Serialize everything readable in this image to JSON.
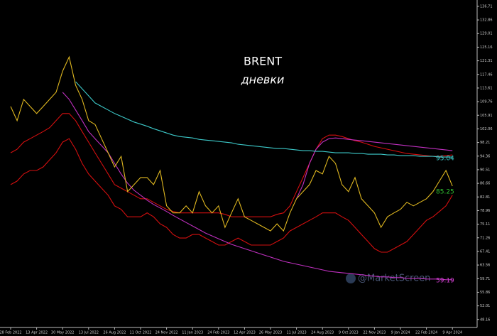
{
  "chart_data": {
    "type": "line",
    "title": "BRENT",
    "subtitle": "дневки",
    "watermark": "@MarketScreen",
    "annotations": [
      {
        "text": "95.04",
        "color": "#40d0d0"
      },
      {
        "text": "85.25",
        "color": "#30c030"
      },
      {
        "text": "59.19",
        "color": "#d040d0"
      }
    ],
    "categories": [
      "28 Feb 2022",
      null,
      null,
      null,
      "13 Apr 2022",
      null,
      null,
      null,
      "30 May 2022",
      null,
      null,
      null,
      "13 Jul 2022",
      null,
      null,
      null,
      "26 Aug 2022",
      null,
      null,
      null,
      "11 Oct 2022",
      null,
      null,
      null,
      "24 Nov 2022",
      null,
      null,
      null,
      "11 Jan 2023",
      null,
      null,
      null,
      "24 Feb 2023",
      null,
      null,
      null,
      "12 Apr 2023",
      null,
      null,
      null,
      "26 May 2023",
      null,
      null,
      null,
      "11 Jul 2023",
      null,
      null,
      null,
      "24 Aug 2023",
      null,
      null,
      null,
      "9 Oct 2023",
      null,
      null,
      null,
      "22 Nov 2023",
      null,
      null,
      null,
      "9 Jan 2024",
      null,
      null,
      null,
      "22 Feb 2024",
      null,
      null,
      null,
      "9 Apr 2024"
    ],
    "series": [
      {
        "color": "#d40f0f",
        "values": [
          95.3,
          96.3,
          98.3,
          99.3,
          100.3,
          101.3,
          102.4,
          104.4,
          106.4,
          106.4,
          104.4,
          101.3,
          98.3,
          95.3,
          92.3,
          89.3,
          86.3,
          85.3,
          84.3,
          83.3,
          82.3,
          82.3,
          81.3,
          80.3,
          79.3,
          78.7,
          78.3,
          78.3,
          78.3,
          78.3,
          78.3,
          78.3,
          78.3,
          77.9,
          77.2,
          77.2,
          77.2,
          77.2,
          77.2,
          77.2,
          77.2,
          77.9,
          78.3,
          80.3,
          84.3,
          88.3,
          92.3,
          96.3,
          99.3,
          100.3,
          100.3,
          99.9,
          99.3,
          98.7,
          98.3,
          97.7,
          97.1,
          96.7,
          96.3,
          95.9,
          95.5,
          95.1,
          94.9,
          94.7,
          94.5,
          94.3,
          94.3,
          94.5,
          94.7
        ]
      },
      {
        "color": "#d40f0f",
        "values": [
          86.3,
          87.3,
          89.3,
          90.3,
          90.3,
          91.3,
          93.3,
          95.3,
          98.3,
          99.3,
          96.3,
          92.3,
          89.3,
          87.3,
          85.3,
          83.3,
          80.3,
          79.3,
          77.2,
          77.2,
          77.2,
          78.3,
          77.2,
          75.2,
          74.2,
          72.2,
          71.2,
          71.2,
          72.2,
          72.2,
          71.2,
          70.2,
          69.2,
          69.2,
          70.2,
          71.2,
          70.2,
          69.2,
          69.2,
          69.2,
          69.2,
          70.2,
          71.2,
          73.2,
          74.2,
          75.2,
          76.2,
          77.2,
          78.3,
          78.3,
          78.3,
          77.2,
          76.2,
          74.2,
          72.2,
          70.2,
          68.2,
          67.2,
          67.2,
          68.2,
          69.2,
          70.2,
          72.2,
          74.2,
          76.2,
          77.2,
          78.7,
          80.3,
          83.3
        ]
      },
      {
        "color": "#c030c0",
        "values": [
          null,
          null,
          null,
          null,
          null,
          null,
          null,
          null,
          112.4,
          110.4,
          107.4,
          104.4,
          101.3,
          99.3,
          97.3,
          95.3,
          92.3,
          89.3,
          86.7,
          84.7,
          83.3,
          81.9,
          80.7,
          79.7,
          78.7,
          77.6,
          76.6,
          75.6,
          74.6,
          73.6,
          72.6,
          71.8,
          71.0,
          70.2,
          69.4,
          68.8,
          68.2,
          67.6,
          67.0,
          66.4,
          65.8,
          65.2,
          64.6,
          64.2,
          63.8,
          63.4,
          63.0,
          62.6,
          62.2,
          61.8,
          61.6,
          61.4,
          61.2,
          61.0,
          60.8,
          60.6,
          60.4,
          60.2,
          60.2,
          60.0,
          60.0,
          59.8,
          59.8,
          59.8,
          59.6,
          59.6,
          59.6,
          59.4,
          59.4
        ]
      },
      {
        "color": "#c030c0",
        "values": [
          null,
          null,
          null,
          null,
          null,
          null,
          null,
          null,
          null,
          null,
          null,
          null,
          null,
          null,
          null,
          null,
          null,
          null,
          null,
          null,
          null,
          null,
          null,
          null,
          null,
          null,
          null,
          null,
          null,
          null,
          null,
          null,
          null,
          null,
          null,
          null,
          null,
          null,
          null,
          null,
          null,
          null,
          null,
          null,
          82.3,
          86.3,
          92.3,
          96.3,
          98.3,
          99.3,
          99.5,
          99.3,
          99.1,
          98.9,
          98.7,
          98.5,
          98.3,
          98.1,
          97.9,
          97.7,
          97.5,
          97.3,
          97.1,
          96.9,
          96.7,
          96.5,
          96.3,
          96.1,
          95.9
        ]
      },
      {
        "color": "#3cc8c8",
        "values": [
          null,
          null,
          null,
          null,
          null,
          null,
          null,
          null,
          null,
          null,
          115.4,
          113.4,
          111.4,
          109.4,
          108.4,
          107.4,
          106.4,
          105.6,
          104.8,
          104.0,
          103.4,
          102.8,
          102.1,
          101.5,
          100.9,
          100.3,
          99.9,
          99.7,
          99.5,
          99.1,
          98.9,
          98.7,
          98.5,
          98.3,
          98.1,
          97.7,
          97.5,
          97.3,
          97.1,
          96.9,
          96.7,
          96.5,
          96.5,
          96.3,
          96.1,
          95.9,
          95.9,
          95.7,
          95.7,
          95.5,
          95.3,
          95.3,
          95.3,
          95.1,
          95.1,
          94.9,
          94.9,
          94.9,
          94.7,
          94.7,
          94.5,
          94.5,
          94.5,
          94.3,
          94.3,
          94.3,
          94.1,
          94.1,
          94.1
        ]
      },
      {
        "color": "#e0b820",
        "values": [
          108.4,
          104.4,
          110.4,
          108.4,
          106.4,
          108.4,
          110.4,
          112.4,
          118.4,
          122.4,
          114.4,
          110.4,
          104.4,
          103.3,
          99.3,
          95.3,
          91.3,
          94.3,
          84.3,
          86.3,
          88.3,
          88.3,
          86.3,
          90.3,
          80.3,
          78.3,
          78.3,
          80.3,
          78.3,
          84.3,
          80.3,
          78.3,
          80.3,
          74.2,
          78.3,
          82.3,
          77.2,
          76.2,
          75.2,
          74.2,
          73.2,
          75.2,
          73.2,
          78.3,
          82.3,
          84.3,
          86.3,
          90.3,
          89.3,
          94.3,
          92.3,
          86.3,
          84.3,
          88.3,
          82.3,
          80.3,
          78.3,
          74.2,
          77.2,
          78.3,
          79.3,
          81.3,
          80.3,
          81.3,
          82.3,
          84.3,
          87.3,
          90.3,
          85.9
        ]
      }
    ],
    "ylim": [
      44.9,
      138.5
    ],
    "yticks": [
      48.16,
      52.01,
      55.86,
      59.71,
      63.56,
      67.41,
      71.26,
      75.11,
      78.96,
      82.81,
      86.66,
      90.51,
      94.36,
      98.21,
      102.06,
      105.91,
      109.76,
      113.61,
      117.46,
      121.31,
      125.16,
      129.01,
      132.86,
      136.71
    ]
  }
}
